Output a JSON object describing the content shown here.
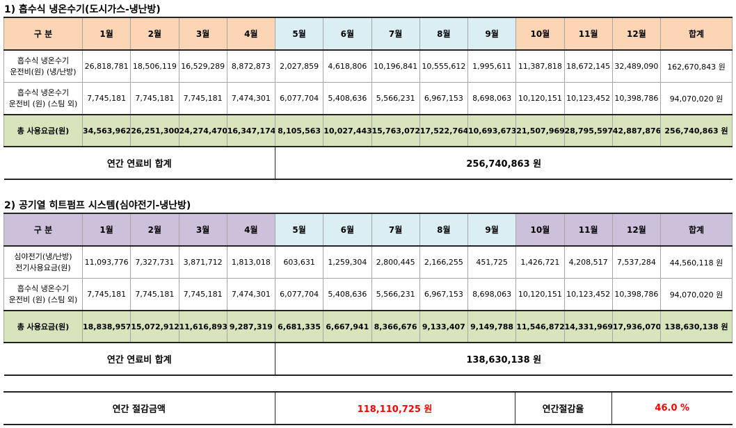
{
  "months": [
    "1월",
    "2월",
    "3월",
    "4월",
    "5월",
    "6월",
    "7월",
    "8월",
    "9월",
    "10월",
    "11월",
    "12월"
  ],
  "header_label": "구 분",
  "total_label": "합계",
  "colors": {
    "orange": "#fcd5b4",
    "blue": "#daeef3",
    "purple": "#ccc0da",
    "green": "#d8e4bc",
    "red": "#ff0000"
  },
  "tables": [
    {
      "title": "1) 흡수식 냉온수기(도시가스-냉난방)",
      "season_color": "orange",
      "rows": [
        {
          "label": [
            "흡수식 냉온수기",
            "운전비(원) (냉/난방)"
          ],
          "values": [
            "26,818,781",
            "18,506,119",
            "16,529,289",
            "8,872,873",
            "2,027,859",
            "4,618,806",
            "10,196,841",
            "10,555,612",
            "1,995,611",
            "11,387,818",
            "18,672,145",
            "32,489,090"
          ],
          "total": "162,670,843 원"
        },
        {
          "label": [
            "흡수식 냉온수기",
            "운전비 (원) (스팀 외)"
          ],
          "values": [
            "7,745,181",
            "7,745,181",
            "7,745,181",
            "7,474,301",
            "6,077,704",
            "5,408,636",
            "5,566,231",
            "6,967,153",
            "8,698,063",
            "10,120,151",
            "10,123,452",
            "10,398,786"
          ],
          "total": "94,070,020 원"
        }
      ],
      "sum_row": {
        "label": "총 사용요금(원)",
        "values": [
          "34,563,962",
          "26,251,300",
          "24,274,470",
          "16,347,174",
          "8,105,563",
          "10,027,443",
          "15,763,072",
          "17,522,764",
          "10,693,673",
          "21,507,969",
          "28,795,597",
          "42,887,876"
        ],
        "total": "256,740,863 원"
      },
      "annual": {
        "label": "연간 연료비 합계",
        "value": "256,740,863 원"
      }
    },
    {
      "title": "2) 공기열 히트펌프 시스템(심야전기-냉난방)",
      "season_color": "purple",
      "rows": [
        {
          "label": [
            "심야전기(냉/난방)",
            "전기사용요금(원)"
          ],
          "values": [
            "11,093,776",
            "7,327,731",
            "3,871,712",
            "1,813,018",
            "603,631",
            "1,259,304",
            "2,800,445",
            "2,166,255",
            "451,725",
            "1,426,721",
            "4,208,517",
            "7,537,284"
          ],
          "total": "44,560,118 원"
        },
        {
          "label": [
            "흡수식 냉온수기",
            "운전비 (원) (스팀 외)"
          ],
          "values": [
            "7,745,181",
            "7,745,181",
            "7,745,181",
            "7,474,301",
            "6,077,704",
            "5,408,636",
            "5,566,231",
            "6,967,153",
            "8,698,063",
            "10,120,151",
            "10,123,452",
            "10,398,786"
          ],
          "total": "94,070,020 원"
        }
      ],
      "sum_row": {
        "label": "총 사용요금(원)",
        "values": [
          "18,838,957",
          "15,072,912",
          "11,616,893",
          "9,287,319",
          "6,681,335",
          "6,667,941",
          "8,366,676",
          "9,133,407",
          "9,149,788",
          "11,546,872",
          "14,331,969",
          "17,936,070"
        ],
        "total": "138,630,138 원"
      },
      "annual": {
        "label": "연간 연료비 합계",
        "value": "138,630,138 원"
      }
    }
  ],
  "savings": {
    "amount_label": "연간 절감금액",
    "amount": "118,110,725 원",
    "rate_label": "연간절감율",
    "rate": "46.0 %"
  }
}
